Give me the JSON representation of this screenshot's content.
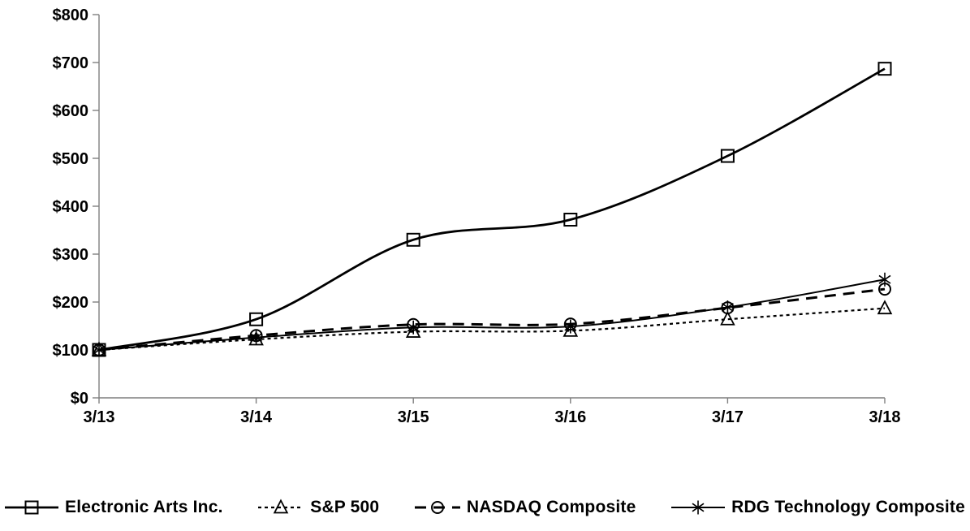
{
  "chart_data": {
    "type": "line",
    "title": "",
    "xlabel": "",
    "ylabel": "",
    "x_labels": [
      "3/13",
      "3/14",
      "3/15",
      "3/16",
      "3/17",
      "3/18"
    ],
    "y_tick_labels": [
      "$0",
      "$100",
      "$200",
      "$300",
      "$400",
      "$500",
      "$600",
      "$700",
      "$800"
    ],
    "ylim": [
      0,
      800
    ],
    "y_tick_step": 100,
    "grid": "off",
    "legend_position": "bottom",
    "colors": {
      "series": "#000000",
      "axis": "#7f7f7f",
      "background": "#ffffff",
      "text": "#000000"
    },
    "series": [
      {
        "name": "Electronic Arts Inc.",
        "marker": "square",
        "line_style": "solid",
        "values": [
          100,
          164,
          330,
          372,
          505,
          687
        ]
      },
      {
        "name": "S&P 500",
        "marker": "triangle",
        "line_style": "dotted",
        "values": [
          100,
          122,
          138,
          140,
          164,
          187
        ]
      },
      {
        "name": "NASDAQ Composite",
        "marker": "circle",
        "line_style": "dashed",
        "values": [
          100,
          130,
          153,
          154,
          188,
          227
        ]
      },
      {
        "name": "RDG Technology Composite",
        "marker": "asterisk",
        "line_style": "solid",
        "values": [
          100,
          126,
          147,
          149,
          189,
          247
        ]
      }
    ]
  }
}
